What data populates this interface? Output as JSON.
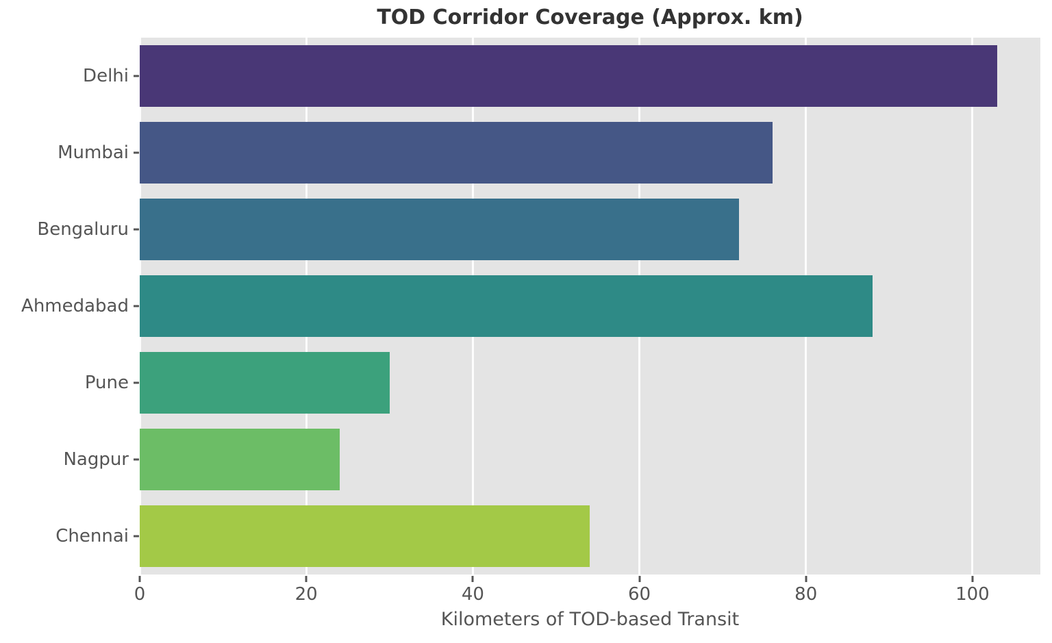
{
  "title": "TOD Corridor Coverage (Approx. km)",
  "xlabel": "Kilometers of TOD-based Transit",
  "chart_data": {
    "type": "bar",
    "orientation": "horizontal",
    "title": "TOD Corridor Coverage (Approx. km)",
    "xlabel": "Kilometers of TOD-based Transit",
    "ylabel": "",
    "categories": [
      "Delhi",
      "Mumbai",
      "Bengaluru",
      "Ahmedabad",
      "Pune",
      "Nagpur",
      "Chennai"
    ],
    "values": [
      103,
      76,
      72,
      88,
      30,
      24,
      54
    ],
    "bar_colors": [
      "#493776",
      "#455786",
      "#39708b",
      "#2e8a86",
      "#3ca17c",
      "#6cbd66",
      "#a3c947"
    ],
    "xlim": [
      0,
      108.15
    ],
    "xticks": [
      0,
      20,
      40,
      60,
      80,
      100
    ],
    "grid": "vertical-white-gridlines",
    "legend": "none",
    "colors": {
      "plot_background": "#e4e4e4",
      "figure_background": "#ffffff",
      "grid_line": "#ffffff",
      "tick_text": "#555555",
      "title_text": "#333333"
    }
  }
}
